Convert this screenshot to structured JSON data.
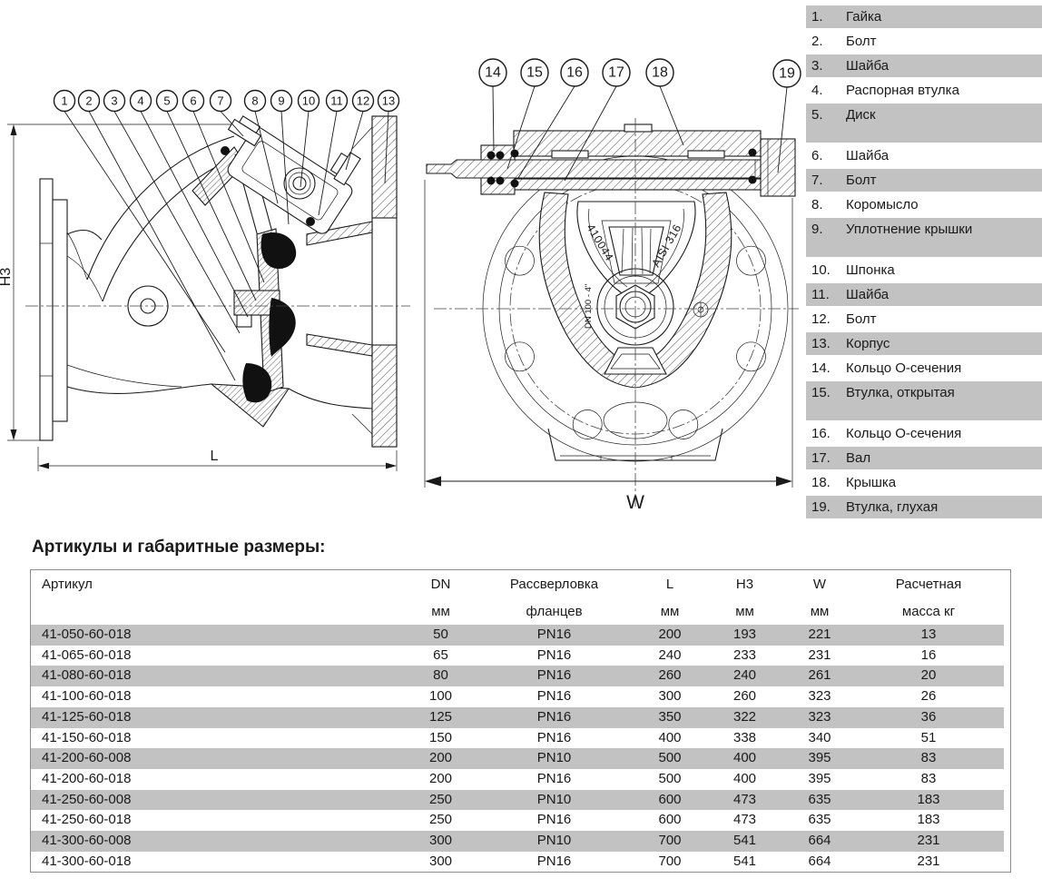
{
  "parts_list": {
    "items": [
      {
        "num": "1.",
        "label": "Гайка",
        "shaded": true,
        "tall": false
      },
      {
        "num": "2.",
        "label": "Болт",
        "shaded": false,
        "tall": false
      },
      {
        "num": "3.",
        "label": "Шайба",
        "shaded": true,
        "tall": false
      },
      {
        "num": "4.",
        "label": "Распорная втулка",
        "shaded": false,
        "tall": false
      },
      {
        "num": "5.",
        "label": "Диск",
        "shaded": true,
        "tall": true
      },
      {
        "num": "6.",
        "label": "Шайба",
        "shaded": false,
        "tall": false
      },
      {
        "num": "7.",
        "label": "Болт",
        "shaded": true,
        "tall": false
      },
      {
        "num": "8.",
        "label": "Коромысло",
        "shaded": false,
        "tall": false
      },
      {
        "num": "9.",
        "label": "Уплотнение крышки",
        "shaded": true,
        "tall": true
      },
      {
        "num": "10.",
        "label": "Шпонка",
        "shaded": false,
        "tall": false
      },
      {
        "num": "11.",
        "label": "Шайба",
        "shaded": true,
        "tall": false
      },
      {
        "num": "12.",
        "label": "Болт",
        "shaded": false,
        "tall": false
      },
      {
        "num": "13.",
        "label": "Корпус",
        "shaded": true,
        "tall": false
      },
      {
        "num": "14.",
        "label": "Кольцо О-сечения",
        "shaded": false,
        "tall": false
      },
      {
        "num": "15.",
        "label": "Втулка, открытая",
        "shaded": true,
        "tall": true
      },
      {
        "num": "16.",
        "label": "Кольцо О-сечения",
        "shaded": false,
        "tall": false
      },
      {
        "num": "17.",
        "label": "Вал",
        "shaded": true,
        "tall": false
      },
      {
        "num": "18.",
        "label": "Крышка",
        "shaded": false,
        "tall": false
      },
      {
        "num": "19.",
        "label": "Втулка, глухая",
        "shaded": true,
        "tall": false
      }
    ]
  },
  "dimensions_table": {
    "title": "Артикулы и габаритные размеры:",
    "headers": [
      {
        "line1": "Артикул",
        "line2": ""
      },
      {
        "line1": "DN",
        "line2": "мм"
      },
      {
        "line1": "Рассверловка",
        "line2": "фланцев"
      },
      {
        "line1": "L",
        "line2": "мм"
      },
      {
        "line1": "H3",
        "line2": "мм"
      },
      {
        "line1": "W",
        "line2": "мм"
      },
      {
        "line1": "Расчетная",
        "line2": "масса кг"
      }
    ],
    "rows": [
      {
        "article": "41-050-60-018",
        "dn": "50",
        "pn": "PN16",
        "l": "200",
        "h3": "193",
        "w": "221",
        "mass": "13",
        "shaded": true
      },
      {
        "article": "41-065-60-018",
        "dn": "65",
        "pn": "PN16",
        "l": "240",
        "h3": "233",
        "w": "231",
        "mass": "16",
        "shaded": false
      },
      {
        "article": "41-080-60-018",
        "dn": "80",
        "pn": "PN16",
        "l": "260",
        "h3": "240",
        "w": "261",
        "mass": "20",
        "shaded": true
      },
      {
        "article": "41-100-60-018",
        "dn": "100",
        "pn": "PN16",
        "l": "300",
        "h3": "260",
        "w": "323",
        "mass": "26",
        "shaded": false
      },
      {
        "article": "41-125-60-018",
        "dn": "125",
        "pn": "PN16",
        "l": "350",
        "h3": "322",
        "w": "323",
        "mass": "36",
        "shaded": true
      },
      {
        "article": "41-150-60-018",
        "dn": "150",
        "pn": "PN16",
        "l": "400",
        "h3": "338",
        "w": "340",
        "mass": "51",
        "shaded": false
      },
      {
        "article": "41-200-60-008",
        "dn": "200",
        "pn": "PN10",
        "l": "500",
        "h3": "400",
        "w": "395",
        "mass": "83",
        "shaded": true
      },
      {
        "article": "41-200-60-018",
        "dn": "200",
        "pn": "PN16",
        "l": "500",
        "h3": "400",
        "w": "395",
        "mass": "83",
        "shaded": false
      },
      {
        "article": "41-250-60-008",
        "dn": "250",
        "pn": "PN10",
        "l": "600",
        "h3": "473",
        "w": "635",
        "mass": "183",
        "shaded": true
      },
      {
        "article": "41-250-60-018",
        "dn": "250",
        "pn": "PN16",
        "l": "600",
        "h3": "473",
        "w": "635",
        "mass": "183",
        "shaded": false
      },
      {
        "article": "41-300-60-008",
        "dn": "300",
        "pn": "PN10",
        "l": "700",
        "h3": "541",
        "w": "664",
        "mass": "231",
        "shaded": true
      },
      {
        "article": "41-300-60-018",
        "dn": "300",
        "pn": "PN16",
        "l": "700",
        "h3": "541",
        "w": "664",
        "mass": "231",
        "shaded": false
      }
    ]
  },
  "drawings": {
    "left": {
      "callouts": [
        "1",
        "2",
        "3",
        "4",
        "5",
        "6",
        "7",
        "8",
        "9",
        "10",
        "11",
        "12",
        "13"
      ],
      "dim_height": "H3",
      "dim_length": "L"
    },
    "right": {
      "callouts": [
        "14",
        "15",
        "16",
        "17",
        "18",
        "19"
      ],
      "dim_width": "W",
      "cast_number": "410044",
      "cast_material": "AISI 316",
      "cast_size": "DN 100 - 4\""
    }
  },
  "colors": {
    "row_shade": "#c2c2c2",
    "line": "#1a1a1a"
  }
}
